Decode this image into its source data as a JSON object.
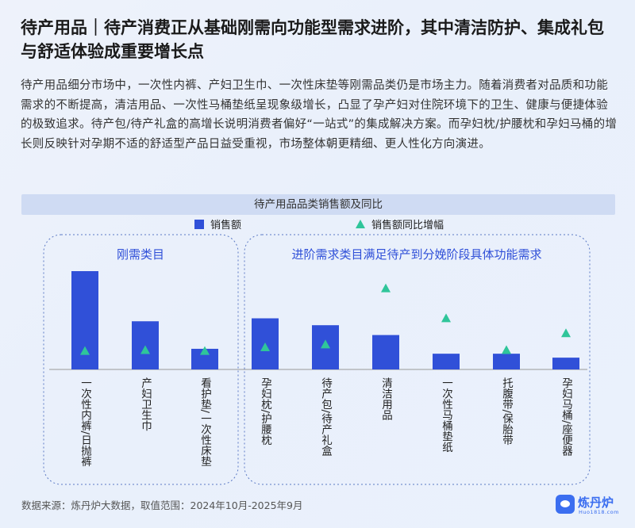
{
  "header": {
    "title": "待产用品｜待产消费正从基础刚需向功能型需求进阶，其中清洁防护、集成礼包与舒适体验成重要增长点",
    "description": "待产用品细分市场中，一次性内裤、产妇卫生巾、一次性床垫等刚需品类仍是市场主力。随着消费者对品质和功能需求的不断提高，清洁用品、一次性马桶垫纸呈现象级增长，凸显了孕产妇对住院环境下的卫生、健康与便捷体验的极致追求。待产包/待产礼盒的高增长说明消费者偏好“一站式”的集成解决方案。而孕妇枕/护腰枕和孕妇马桶的增长则反映针对孕期不适的舒适型产品日益受重视，市场整体朝更精细、更人性化方向演进。"
  },
  "chart_data": {
    "type": "bar",
    "title": "待产用品品类销售额及同比",
    "legend": [
      "销售额",
      "销售额同比增幅"
    ],
    "groups": [
      {
        "label": "刚需类目",
        "categories": [
          "一次性内裤/日抛裤",
          "产妇卫生巾",
          "看护垫/一次性床垫"
        ]
      },
      {
        "label": "进阶需求类目满足待产到分娩阶段具体功能需求",
        "categories": [
          "孕妇枕/护腰枕",
          "待产包/待产礼盒",
          "清洁用品",
          "一次性马桶垫纸",
          "托腹带/保胎带",
          "孕妇马桶/座便器"
        ]
      }
    ],
    "categories": [
      "一次性内裤/日抛裤",
      "产妇卫生巾",
      "看护垫/一次性床垫",
      "孕妇枕/护腰枕",
      "待产包/待产礼盒",
      "清洁用品",
      "一次性马桶垫纸",
      "托腹带/保胎带",
      "孕妇马桶/座便器"
    ],
    "series": [
      {
        "name": "销售额",
        "kind": "bar",
        "values": [
          100,
          49,
          21,
          52,
          45,
          35,
          16,
          16,
          12
        ]
      },
      {
        "name": "销售额同比增幅",
        "kind": "marker",
        "values": [
          13,
          14,
          13,
          17,
          20,
          80,
          48,
          14,
          32
        ]
      }
    ],
    "colors": {
      "bar": "#3050d8",
      "marker": "#2fc59a"
    }
  },
  "footer": {
    "source": "数据来源：炼丹炉大数据，取值范围：2024年10月-2025年9月",
    "logo_name": "炼丹炉",
    "logo_url": "Huo1818.com"
  }
}
